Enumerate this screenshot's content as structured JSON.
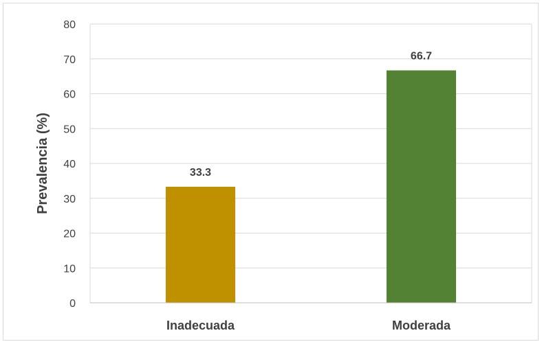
{
  "chart_data": {
    "type": "bar",
    "title": "",
    "xlabel": "",
    "ylabel": "Prevalencia (%)",
    "ylim": [
      0,
      80
    ],
    "y_ticks": [
      0,
      10,
      20,
      30,
      40,
      50,
      60,
      70,
      80
    ],
    "grid": true,
    "legend": "none",
    "categories": [
      "Inadecuada",
      "Moderada"
    ],
    "values": [
      33.3,
      66.7
    ],
    "data_labels": [
      "33.3",
      "66.7"
    ],
    "colors": [
      "#bf9000",
      "#548235"
    ]
  }
}
